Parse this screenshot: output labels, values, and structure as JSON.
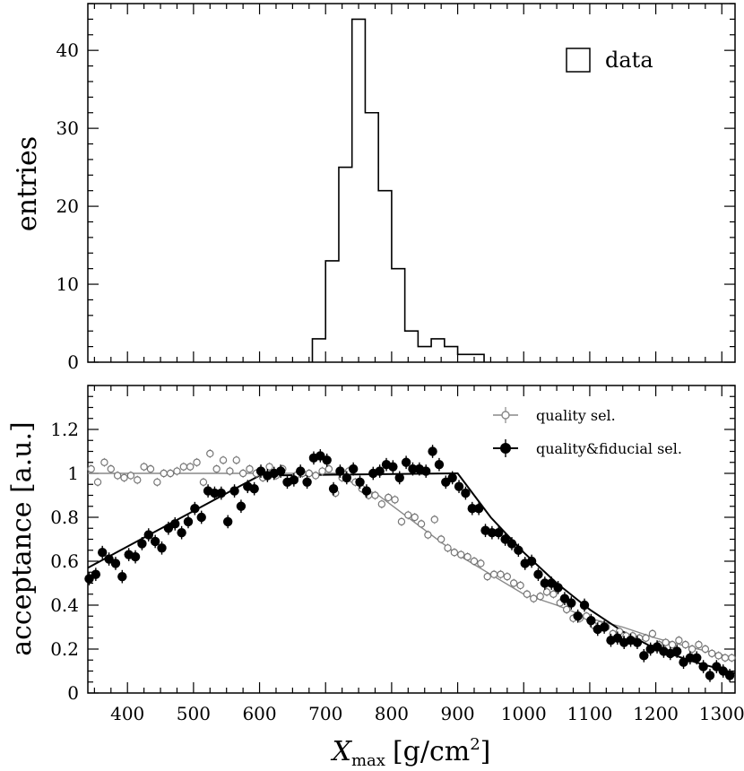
{
  "chart_data": [
    {
      "type": "bar",
      "name": "histogram",
      "ylabel": "entries",
      "xlim": [
        340,
        1320
      ],
      "ylim": [
        0,
        46
      ],
      "xticks": [
        400,
        500,
        600,
        700,
        800,
        900,
        1000,
        1100,
        1200,
        1300
      ],
      "yticks": [
        0,
        10,
        20,
        30,
        40
      ],
      "legend": {
        "label": "data",
        "position": "top-right"
      },
      "bin_width": 20,
      "bins": [
        [
          680,
          3
        ],
        [
          700,
          13
        ],
        [
          720,
          25
        ],
        [
          740,
          44
        ],
        [
          760,
          32
        ],
        [
          780,
          22
        ],
        [
          800,
          12
        ],
        [
          820,
          4
        ],
        [
          840,
          2
        ],
        [
          860,
          3
        ],
        [
          880,
          2
        ],
        [
          900,
          1
        ],
        [
          920,
          1
        ]
      ]
    },
    {
      "type": "scatter",
      "name": "acceptance",
      "ylabel": "acceptance [a.u.]",
      "xlabel_main": "X",
      "xlabel_sub": "max",
      "xlabel_unit_pre": "[g/cm",
      "xlabel_unit_sup": "2",
      "xlabel_unit_post": "]",
      "xlim": [
        340,
        1320
      ],
      "ylim": [
        0,
        1.4
      ],
      "xticks": [
        400,
        500,
        600,
        700,
        800,
        900,
        1000,
        1100,
        1200,
        1300
      ],
      "yticks": [
        0,
        0.2,
        0.4,
        0.6,
        0.8,
        1,
        1.2
      ],
      "ytick_labels": [
        "0",
        "0.2",
        "0.4",
        "0.6",
        "0.8",
        "1",
        "1.2"
      ],
      "legend_position": "top-right",
      "series": [
        {
          "name": "quality sel.",
          "color": "#888888",
          "marker": "open",
          "fit": [
            [
              340,
              1.0
            ],
            [
              715,
              1.0
            ],
            [
              745,
              0.95
            ],
            [
              780,
              0.9
            ],
            [
              820,
              0.81
            ],
            [
              860,
              0.72
            ],
            [
              900,
              0.63
            ],
            [
              950,
              0.54
            ],
            [
              1000,
              0.45
            ],
            [
              1050,
              0.4
            ],
            [
              1100,
              0.34
            ],
            [
              1150,
              0.3
            ],
            [
              1200,
              0.25
            ],
            [
              1250,
              0.21
            ],
            [
              1320,
              0.16
            ]
          ],
          "points": [
            [
              345,
              1.02
            ],
            [
              355,
              0.96
            ],
            [
              365,
              1.05
            ],
            [
              375,
              1.02
            ],
            [
              385,
              0.99
            ],
            [
              395,
              0.98
            ],
            [
              405,
              0.99
            ],
            [
              415,
              0.97
            ],
            [
              425,
              1.03
            ],
            [
              435,
              1.02
            ],
            [
              445,
              0.96
            ],
            [
              455,
              1.0
            ],
            [
              465,
              1.0
            ],
            [
              475,
              1.01
            ],
            [
              485,
              1.03
            ],
            [
              495,
              1.03
            ],
            [
              505,
              1.05
            ],
            [
              515,
              0.96
            ],
            [
              525,
              1.09
            ],
            [
              535,
              1.02
            ],
            [
              545,
              1.06
            ],
            [
              555,
              1.01
            ],
            [
              565,
              1.06
            ],
            [
              575,
              1.0
            ],
            [
              585,
              1.02
            ],
            [
              595,
              1.0
            ],
            [
              605,
              0.98
            ],
            [
              615,
              1.03
            ],
            [
              625,
              0.99
            ],
            [
              635,
              1.02
            ],
            [
              645,
              0.96
            ],
            [
              655,
              0.99
            ],
            [
              665,
              1.0
            ],
            [
              675,
              1.0
            ],
            [
              685,
              0.99
            ],
            [
              695,
              1.01
            ],
            [
              705,
              1.02
            ],
            [
              715,
              0.91
            ],
            [
              725,
              0.98
            ],
            [
              735,
              1.01
            ],
            [
              745,
              0.96
            ],
            [
              755,
              0.93
            ],
            [
              765,
              0.9
            ],
            [
              775,
              0.9
            ],
            [
              785,
              0.86
            ],
            [
              795,
              0.89
            ],
            [
              805,
              0.88
            ],
            [
              815,
              0.78
            ],
            [
              825,
              0.81
            ],
            [
              835,
              0.8
            ],
            [
              845,
              0.77
            ],
            [
              855,
              0.72
            ],
            [
              865,
              0.79
            ],
            [
              875,
              0.7
            ],
            [
              885,
              0.66
            ],
            [
              895,
              0.64
            ],
            [
              905,
              0.63
            ],
            [
              915,
              0.62
            ],
            [
              925,
              0.6
            ],
            [
              935,
              0.59
            ],
            [
              945,
              0.53
            ],
            [
              955,
              0.54
            ],
            [
              965,
              0.54
            ],
            [
              975,
              0.53
            ],
            [
              985,
              0.5
            ],
            [
              995,
              0.49
            ],
            [
              1005,
              0.45
            ],
            [
              1015,
              0.43
            ],
            [
              1025,
              0.44
            ],
            [
              1035,
              0.46
            ],
            [
              1045,
              0.45
            ],
            [
              1055,
              0.41
            ],
            [
              1065,
              0.38
            ],
            [
              1075,
              0.34
            ],
            [
              1085,
              0.34
            ],
            [
              1095,
              0.35
            ],
            [
              1105,
              0.31
            ],
            [
              1115,
              0.31
            ],
            [
              1125,
              0.3
            ],
            [
              1135,
              0.27
            ],
            [
              1145,
              0.28
            ],
            [
              1155,
              0.26
            ],
            [
              1165,
              0.26
            ],
            [
              1175,
              0.25
            ],
            [
              1185,
              0.25
            ],
            [
              1195,
              0.27
            ],
            [
              1205,
              0.22
            ],
            [
              1215,
              0.23
            ],
            [
              1225,
              0.22
            ],
            [
              1235,
              0.24
            ],
            [
              1245,
              0.22
            ],
            [
              1255,
              0.2
            ],
            [
              1265,
              0.22
            ],
            [
              1275,
              0.2
            ],
            [
              1285,
              0.18
            ],
            [
              1295,
              0.17
            ],
            [
              1305,
              0.16
            ],
            [
              1315,
              0.16
            ]
          ]
        },
        {
          "name": "quality&fiducial sel.",
          "color": "#000000",
          "marker": "filled",
          "fit": [
            [
              340,
              0.57
            ],
            [
              600,
              0.99
            ],
            [
              900,
              1.0
            ],
            [
              950,
              0.8
            ],
            [
              1000,
              0.64
            ],
            [
              1050,
              0.5
            ],
            [
              1100,
              0.38
            ],
            [
              1150,
              0.28
            ],
            [
              1200,
              0.2
            ],
            [
              1260,
              0.14
            ],
            [
              1320,
              0.09
            ]
          ],
          "points": [
            [
              342,
              0.52
            ],
            [
              352,
              0.54
            ],
            [
              362,
              0.64
            ],
            [
              372,
              0.61
            ],
            [
              382,
              0.59
            ],
            [
              392,
              0.53
            ],
            [
              402,
              0.63
            ],
            [
              412,
              0.62
            ],
            [
              422,
              0.68
            ],
            [
              432,
              0.72
            ],
            [
              442,
              0.69
            ],
            [
              452,
              0.66
            ],
            [
              462,
              0.75
            ],
            [
              472,
              0.77
            ],
            [
              482,
              0.73
            ],
            [
              492,
              0.78
            ],
            [
              502,
              0.84
            ],
            [
              512,
              0.8
            ],
            [
              522,
              0.92
            ],
            [
              532,
              0.91
            ],
            [
              542,
              0.91
            ],
            [
              552,
              0.78
            ],
            [
              562,
              0.92
            ],
            [
              572,
              0.85
            ],
            [
              582,
              0.94
            ],
            [
              592,
              0.93
            ],
            [
              602,
              1.01
            ],
            [
              612,
              0.99
            ],
            [
              622,
              1.0
            ],
            [
              632,
              1.01
            ],
            [
              642,
              0.96
            ],
            [
              652,
              0.97
            ],
            [
              662,
              1.01
            ],
            [
              672,
              0.96
            ],
            [
              682,
              1.07
            ],
            [
              692,
              1.08
            ],
            [
              702,
              1.06
            ],
            [
              712,
              0.93
            ],
            [
              722,
              1.01
            ],
            [
              732,
              0.98
            ],
            [
              742,
              1.02
            ],
            [
              752,
              0.96
            ],
            [
              762,
              0.92
            ],
            [
              772,
              1.0
            ],
            [
              782,
              1.01
            ],
            [
              792,
              1.04
            ],
            [
              802,
              1.03
            ],
            [
              812,
              0.98
            ],
            [
              822,
              1.05
            ],
            [
              832,
              1.02
            ],
            [
              842,
              1.02
            ],
            [
              852,
              1.01
            ],
            [
              862,
              1.1
            ],
            [
              872,
              1.04
            ],
            [
              882,
              0.96
            ],
            [
              892,
              0.98
            ],
            [
              902,
              0.94
            ],
            [
              912,
              0.91
            ],
            [
              922,
              0.84
            ],
            [
              932,
              0.84
            ],
            [
              942,
              0.74
            ],
            [
              952,
              0.73
            ],
            [
              962,
              0.73
            ],
            [
              972,
              0.7
            ],
            [
              982,
              0.68
            ],
            [
              992,
              0.65
            ],
            [
              1002,
              0.59
            ],
            [
              1012,
              0.6
            ],
            [
              1022,
              0.54
            ],
            [
              1032,
              0.5
            ],
            [
              1042,
              0.5
            ],
            [
              1052,
              0.48
            ],
            [
              1062,
              0.43
            ],
            [
              1072,
              0.41
            ],
            [
              1082,
              0.35
            ],
            [
              1092,
              0.4
            ],
            [
              1102,
              0.33
            ],
            [
              1112,
              0.29
            ],
            [
              1122,
              0.3
            ],
            [
              1132,
              0.24
            ],
            [
              1142,
              0.25
            ],
            [
              1152,
              0.23
            ],
            [
              1162,
              0.24
            ],
            [
              1172,
              0.23
            ],
            [
              1182,
              0.17
            ],
            [
              1192,
              0.2
            ],
            [
              1202,
              0.21
            ],
            [
              1212,
              0.19
            ],
            [
              1222,
              0.18
            ],
            [
              1232,
              0.19
            ],
            [
              1242,
              0.14
            ],
            [
              1252,
              0.16
            ],
            [
              1262,
              0.16
            ],
            [
              1272,
              0.12
            ],
            [
              1282,
              0.08
            ],
            [
              1292,
              0.12
            ],
            [
              1302,
              0.1
            ],
            [
              1312,
              0.08
            ]
          ]
        }
      ]
    }
  ]
}
